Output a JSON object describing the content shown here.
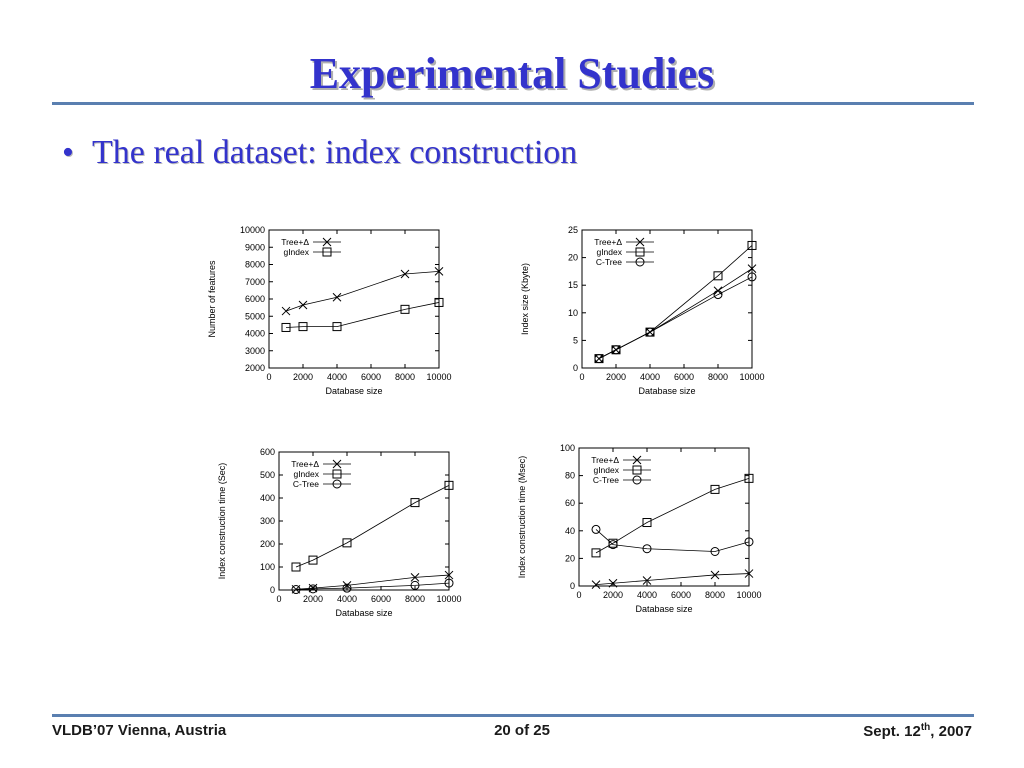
{
  "slide": {
    "title": "Experimental Studies",
    "bullet": "The real dataset: index construction",
    "bullet_marker": "•"
  },
  "footer": {
    "left": "VLDB’07 Vienna, Austria",
    "center": "20 of 25",
    "right_prefix": "Sept. 12",
    "right_sup": "th",
    "right_suffix": ", 2007"
  },
  "colors": {
    "title": "#3333cc",
    "rule": "#5a7fb0"
  },
  "chart_data": [
    {
      "type": "line",
      "xlabel": "Database size",
      "ylabel": "Number of features",
      "xlim": [
        0,
        10000
      ],
      "ylim": [
        2000,
        10000
      ],
      "xticks": [
        "0",
        "2000",
        "4000",
        "6000",
        "8000",
        "10000"
      ],
      "yticks": [
        "2000",
        "3000",
        "4000",
        "5000",
        "6000",
        "7000",
        "8000",
        "9000",
        "10000"
      ],
      "legend": "top-left",
      "series": [
        {
          "name": "Tree+Δ",
          "marker": "x",
          "x": [
            1000,
            2000,
            4000,
            8000,
            10000
          ],
          "y": [
            5300,
            5650,
            6100,
            7450,
            7600
          ]
        },
        {
          "name": "gIndex",
          "marker": "square",
          "x": [
            1000,
            2000,
            4000,
            8000,
            10000
          ],
          "y": [
            4350,
            4400,
            4400,
            5400,
            5800
          ]
        }
      ]
    },
    {
      "type": "line",
      "xlabel": "Database size",
      "ylabel": "Index size (Kbyte)",
      "xlim": [
        0,
        10000
      ],
      "ylim": [
        0,
        25
      ],
      "xticks": [
        "0",
        "2000",
        "4000",
        "6000",
        "8000",
        "10000"
      ],
      "yticks": [
        "0",
        "5",
        "10",
        "15",
        "20",
        "25"
      ],
      "legend": "top-left",
      "series": [
        {
          "name": "Tree+Δ",
          "marker": "x",
          "x": [
            1000,
            2000,
            4000,
            8000,
            10000
          ],
          "y": [
            1.7,
            3.3,
            6.5,
            14,
            18
          ]
        },
        {
          "name": "gIndex",
          "marker": "square",
          "x": [
            1000,
            2000,
            4000,
            8000,
            10000
          ],
          "y": [
            1.7,
            3.3,
            6.5,
            16.7,
            22.2
          ]
        },
        {
          "name": "C-Tree",
          "marker": "circle",
          "x": [
            1000,
            2000,
            4000,
            8000,
            10000
          ],
          "y": [
            1.7,
            3.3,
            6.5,
            13.3,
            16.5
          ]
        }
      ]
    },
    {
      "type": "line",
      "xlabel": "Database size",
      "ylabel": "Index construction time (Sec)",
      "xlim": [
        0,
        10000
      ],
      "ylim": [
        0,
        600
      ],
      "xticks": [
        "0",
        "2000",
        "4000",
        "6000",
        "8000",
        "10000"
      ],
      "yticks": [
        "0",
        "100",
        "200",
        "300",
        "400",
        "500",
        "600"
      ],
      "legend": "top-left",
      "series": [
        {
          "name": "Tree+Δ",
          "marker": "x",
          "x": [
            1000,
            2000,
            4000,
            8000,
            10000
          ],
          "y": [
            3,
            8,
            20,
            55,
            65
          ]
        },
        {
          "name": "gIndex",
          "marker": "square",
          "x": [
            1000,
            2000,
            4000,
            8000,
            10000
          ],
          "y": [
            100,
            130,
            205,
            380,
            455
          ]
        },
        {
          "name": "C-Tree",
          "marker": "circle",
          "x": [
            1000,
            2000,
            4000,
            8000,
            10000
          ],
          "y": [
            2,
            5,
            8,
            20,
            30
          ]
        }
      ]
    },
    {
      "type": "line",
      "xlabel": "Database size",
      "ylabel": "Index construction time (Msec)",
      "xlim": [
        0,
        10000
      ],
      "ylim": [
        0,
        100
      ],
      "xticks": [
        "0",
        "2000",
        "4000",
        "6000",
        "8000",
        "10000"
      ],
      "yticks": [
        "0",
        "20",
        "40",
        "60",
        "80",
        "100"
      ],
      "legend": "top-left",
      "series": [
        {
          "name": "Tree+Δ",
          "marker": "x",
          "x": [
            1000,
            2000,
            4000,
            8000,
            10000
          ],
          "y": [
            1,
            2,
            4,
            8,
            9
          ]
        },
        {
          "name": "gIndex",
          "marker": "square",
          "x": [
            1000,
            2000,
            4000,
            8000,
            10000
          ],
          "y": [
            24,
            31,
            46,
            70,
            78
          ]
        },
        {
          "name": "C-Tree",
          "marker": "circle",
          "x": [
            1000,
            2000,
            4000,
            8000,
            10000
          ],
          "y": [
            41,
            30,
            27,
            25,
            32
          ]
        }
      ]
    }
  ]
}
